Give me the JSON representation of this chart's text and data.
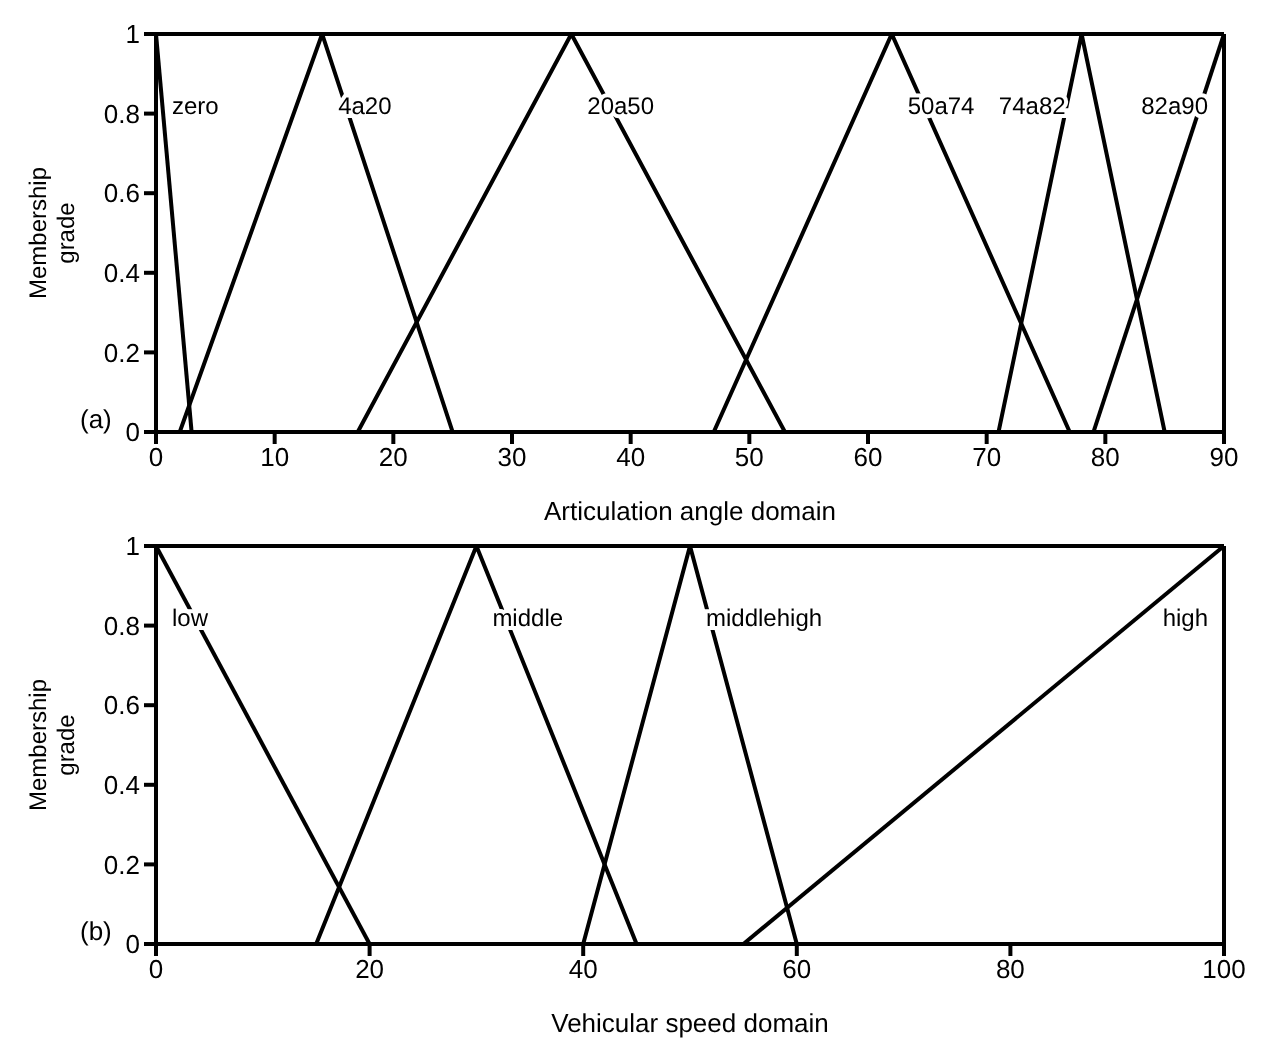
{
  "chart_data": [
    {
      "type": "line",
      "xlabel": "Articulation angle domain",
      "ylabel": "Membership grade",
      "xlim": [
        0,
        90
      ],
      "xticks": [
        0,
        10,
        20,
        30,
        40,
        50,
        60,
        70,
        80,
        90
      ],
      "ylim": [
        0,
        1
      ],
      "yticks": [
        0,
        0.2,
        0.4,
        0.6,
        0.8,
        1
      ],
      "grid": false,
      "legend": false,
      "marker": "none",
      "annotations": [
        "(a)"
      ],
      "series": [
        {
          "name": "zero",
          "color": "#000000",
          "x": [
            0,
            3
          ],
          "values": [
            1,
            0
          ]
        },
        {
          "name": "4a20",
          "color": "#000000",
          "x": [
            2,
            14,
            25
          ],
          "values": [
            0,
            1,
            0
          ]
        },
        {
          "name": "20a50",
          "color": "#000000",
          "x": [
            17,
            35,
            53
          ],
          "values": [
            0,
            1,
            0
          ]
        },
        {
          "name": "50a74",
          "color": "#000000",
          "x": [
            47,
            62,
            77
          ],
          "values": [
            0,
            1,
            0
          ]
        },
        {
          "name": "74a82",
          "color": "#000000",
          "x": [
            71,
            78,
            85
          ],
          "values": [
            0,
            1,
            0
          ]
        },
        {
          "name": "82a90",
          "color": "#000000",
          "x": [
            79,
            90
          ],
          "values": [
            0,
            1
          ]
        }
      ]
    },
    {
      "type": "line",
      "xlabel": "Vehicular speed domain",
      "ylabel": "Membership grade",
      "xlim": [
        0,
        100
      ],
      "xticks": [
        0,
        20,
        40,
        60,
        80,
        100
      ],
      "ylim": [
        0,
        1
      ],
      "yticks": [
        0,
        0.2,
        0.4,
        0.6,
        0.8,
        1
      ],
      "grid": false,
      "legend": false,
      "marker": "none",
      "annotations": [
        "(b)"
      ],
      "series": [
        {
          "name": "low",
          "color": "#000000",
          "x": [
            0,
            20
          ],
          "values": [
            1,
            0
          ]
        },
        {
          "name": "middle",
          "color": "#000000",
          "x": [
            15,
            30,
            45
          ],
          "values": [
            0,
            1,
            0
          ]
        },
        {
          "name": "middlehigh",
          "color": "#000000",
          "x": [
            40,
            50,
            60
          ],
          "values": [
            0,
            1,
            0
          ]
        },
        {
          "name": "high",
          "color": "#000000",
          "x": [
            55,
            100
          ],
          "values": [
            0,
            1
          ]
        }
      ]
    }
  ]
}
